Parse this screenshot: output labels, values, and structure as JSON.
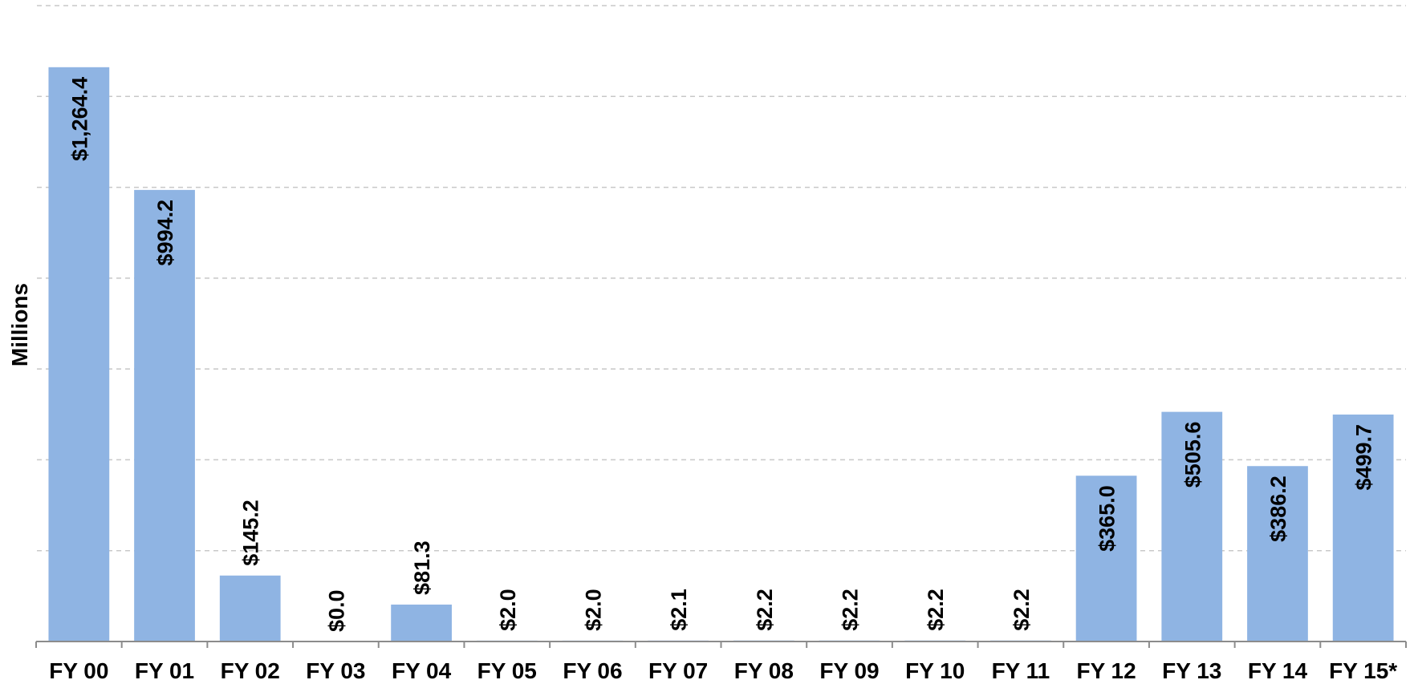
{
  "chart_data": {
    "type": "bar",
    "ylabel": "Millions",
    "xlabel": "",
    "title": "",
    "ylim": [
      0,
      1400
    ],
    "grid": true,
    "colors": {
      "bar": "#8fb4e3"
    },
    "categories": [
      "FY 00",
      "FY 01",
      "FY 02",
      "FY 03",
      "FY 04",
      "FY 05",
      "FY 06",
      "FY 07",
      "FY 08",
      "FY 09",
      "FY 10",
      "FY 11",
      "FY 12",
      "FY 13",
      "FY 14",
      "FY 15*"
    ],
    "values": [
      1264.4,
      994.2,
      145.2,
      0.0,
      81.3,
      2.0,
      2.0,
      2.1,
      2.2,
      2.2,
      2.2,
      2.2,
      365.0,
      505.6,
      386.2,
      499.7
    ],
    "labels": [
      "$1,264.4",
      "$994.2",
      "$145.2",
      "$0.0",
      "$81.3",
      "$2.0",
      "$2.0",
      "$2.1",
      "$2.2",
      "$2.2",
      "$2.2",
      "$2.2",
      "$365.0",
      "$505.6",
      "$386.2",
      "$499.7"
    ]
  }
}
